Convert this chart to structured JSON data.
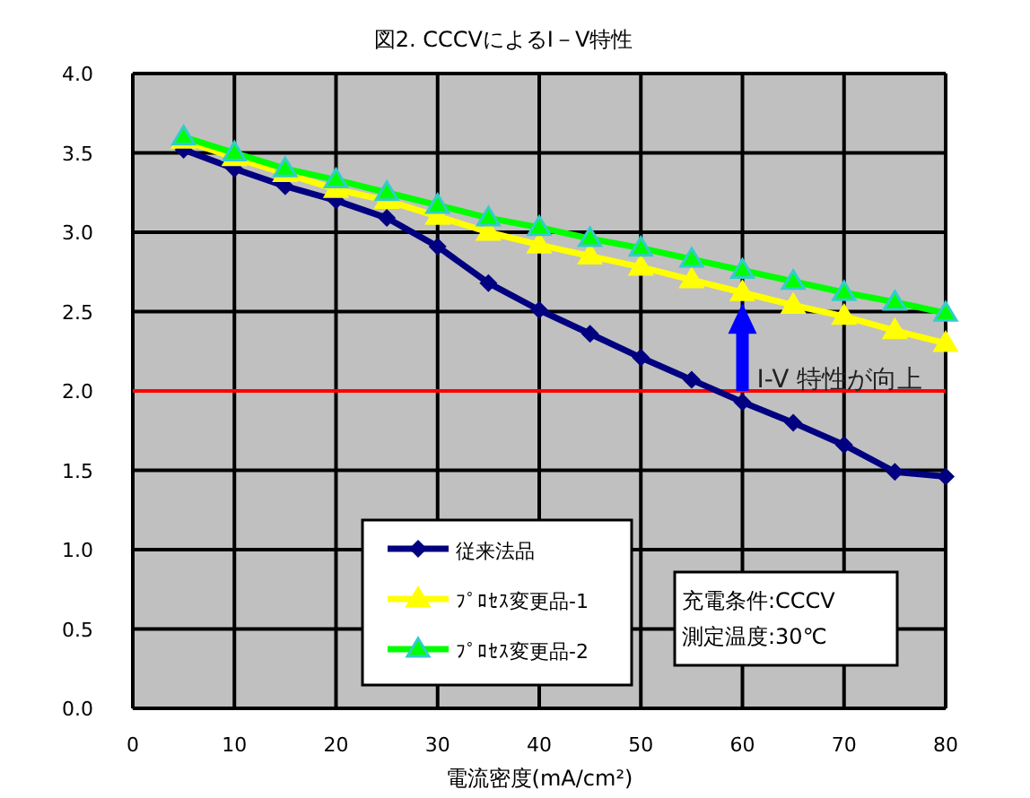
{
  "chart_data": {
    "type": "line",
    "title": "図2. CCCVによるI－V特性",
    "xlabel": "電流密度(mA/cm²)",
    "x": [
      5,
      10,
      15,
      20,
      25,
      30,
      35,
      40,
      45,
      50,
      55,
      60,
      65,
      70,
      75,
      80
    ],
    "series": [
      {
        "name": "従来法品",
        "color": "#000080",
        "marker": "diamond",
        "values": [
          3.52,
          3.4,
          3.29,
          3.2,
          3.09,
          2.91,
          2.68,
          2.51,
          2.36,
          2.21,
          2.07,
          1.93,
          1.8,
          1.66,
          1.49,
          1.46
        ]
      },
      {
        "name": "ﾌﾟﾛｾｽ変更品-1",
        "color": "#ffff00",
        "marker": "triangle",
        "values": [
          3.58,
          3.47,
          3.37,
          3.27,
          3.2,
          3.1,
          3.0,
          2.92,
          2.85,
          2.78,
          2.7,
          2.62,
          2.54,
          2.47,
          2.38,
          2.3
        ]
      },
      {
        "name": "ﾌﾟﾛｾｽ変更品-2",
        "color": "#00ff00",
        "marker": "triangle",
        "values": [
          3.6,
          3.5,
          3.4,
          3.33,
          3.25,
          3.17,
          3.09,
          3.03,
          2.96,
          2.9,
          2.83,
          2.76,
          2.69,
          2.62,
          2.56,
          2.49
        ]
      }
    ],
    "xlim": [
      0,
      80
    ],
    "xticks": [
      0,
      10,
      20,
      30,
      40,
      50,
      60,
      70,
      80
    ],
    "ylim": [
      0,
      4
    ],
    "yticks": [
      {
        "value": 0,
        "label": "0.0"
      },
      {
        "value": 0.5,
        "label": "0.5"
      },
      {
        "value": 1,
        "label": "1.0"
      },
      {
        "value": 1.5,
        "label": "1.5"
      },
      {
        "value": 2,
        "label": "2.0"
      },
      {
        "value": 2.5,
        "label": "2.5"
      },
      {
        "value": 3,
        "label": "3.0"
      },
      {
        "value": 3.5,
        "label": "3.5"
      },
      {
        "value": 4,
        "label": "4.0"
      }
    ],
    "ref_lines": [
      {
        "axis": "y",
        "value": 2,
        "color": "#ff0000"
      }
    ],
    "annotations": [
      {
        "text": "I-V 特性が向上",
        "x": 60,
        "y": 2.62
      },
      "充電条件:CCCV\n測定温度:30℃"
    ],
    "grid": true,
    "legend": "bottom"
  }
}
